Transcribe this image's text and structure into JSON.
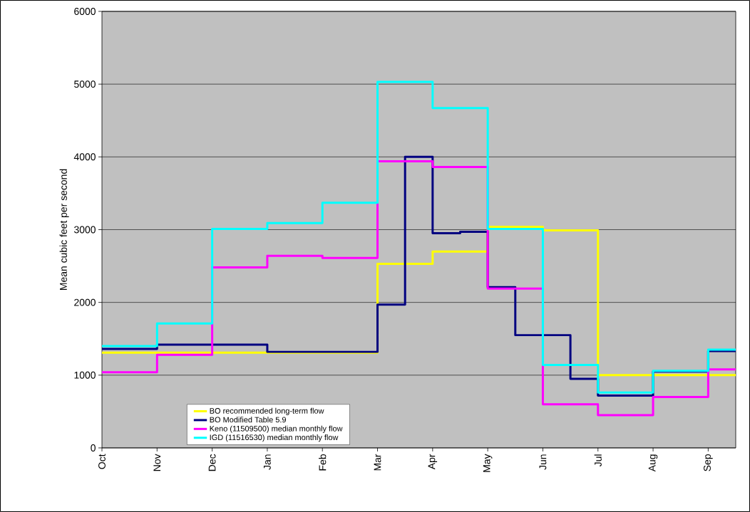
{
  "chart_data": {
    "type": "step",
    "ylabel": "Mean cubic feet per second",
    "categories": [
      "Oct",
      null,
      "Nov",
      null,
      "Dec",
      null,
      "Jan",
      null,
      "Feb",
      null,
      "Mar",
      null,
      "Apr",
      null,
      "May",
      null,
      "Jun",
      null,
      "Jul",
      null,
      "Aug",
      null,
      "Sep",
      null
    ],
    "ylim": [
      0,
      6000
    ],
    "yticks": [
      0,
      1000,
      2000,
      3000,
      4000,
      5000,
      6000
    ],
    "grid": "y",
    "legend": "bottom left",
    "series": [
      {
        "name": "BO recommended long-term flow",
        "color": "#ffff00",
        "values": [
          1310,
          1310,
          1310,
          1310,
          1310,
          1310,
          1310,
          1310,
          1310,
          1310,
          2530,
          2530,
          2700,
          2700,
          3040,
          3040,
          2990,
          2990,
          1000,
          1000,
          1000,
          1000,
          1000,
          1000
        ]
      },
      {
        "name": "BO Modified Table 5.9",
        "color": "#000080",
        "values": [
          1360,
          1360,
          1420,
          1420,
          1420,
          1420,
          1320,
          1320,
          1320,
          1320,
          1970,
          4000,
          2950,
          2970,
          2210,
          1550,
          1550,
          950,
          720,
          720,
          1050,
          1050,
          1330,
          1330
        ]
      },
      {
        "name": "Keno (11509500) median monthly flow",
        "color": "#ff00ff",
        "values": [
          1040,
          1040,
          1280,
          1280,
          2480,
          2480,
          2640,
          2640,
          2610,
          2610,
          3940,
          3940,
          3860,
          3860,
          2190,
          2190,
          600,
          600,
          450,
          450,
          700,
          700,
          1080,
          1080
        ]
      },
      {
        "name": "IGD (11516530) median monthly flow",
        "color": "#00ffff",
        "values": [
          1400,
          1400,
          1710,
          1710,
          3010,
          3010,
          3090,
          3090,
          3370,
          3370,
          5030,
          5030,
          4670,
          4670,
          3010,
          3010,
          1140,
          1140,
          760,
          760,
          1060,
          1060,
          1350,
          1350
        ]
      }
    ]
  }
}
